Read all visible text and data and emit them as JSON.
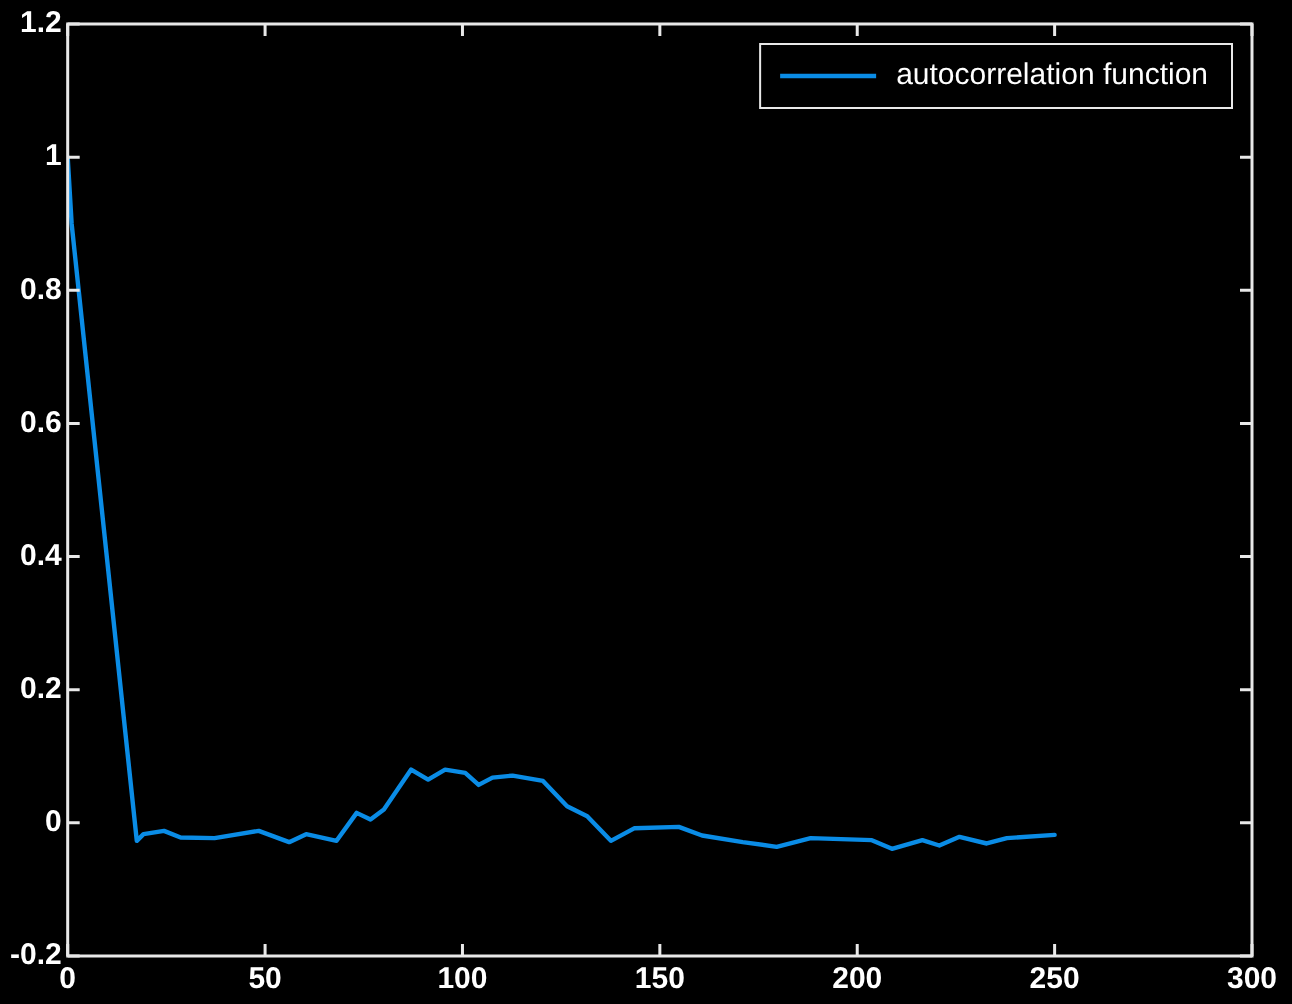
{
  "chart_data": {
    "type": "line",
    "x": [
      0,
      1,
      17.5,
      19.2,
      24.4,
      28.6,
      37.2,
      48.4,
      56.1,
      60.4,
      68.1,
      73.2,
      76.7,
      80.1,
      87,
      91.3,
      95.6,
      100.7,
      104.1,
      107.6,
      112.7,
      120.4,
      126.5,
      131.6,
      137.6,
      143.6,
      154.8,
      160.7,
      171,
      179.6,
      188.2,
      203.7,
      208.8,
      216.5,
      220.8,
      225.9,
      232.8,
      237.9,
      250
    ],
    "series": [
      {
        "name": "autocorrelation function",
        "color": "#0a8ce6",
        "values": [
          1,
          0.9,
          -0.027,
          -0.017,
          -0.012,
          -0.022,
          -0.023,
          -0.012,
          -0.029,
          -0.017,
          -0.027,
          0.015,
          0.005,
          0.02,
          0.08,
          0.065,
          0.08,
          0.075,
          0.057,
          0.068,
          0.071,
          0.063,
          0.025,
          0.01,
          -0.027,
          -0.008,
          -0.006,
          -0.019,
          -0.029,
          -0.036,
          -0.023,
          -0.026,
          -0.039,
          -0.026,
          -0.034,
          -0.021,
          -0.031,
          -0.023,
          -0.018
        ]
      }
    ],
    "xlim": [
      0,
      300
    ],
    "xticks": [
      0,
      50,
      100,
      150,
      200,
      250,
      300
    ],
    "ylim": [
      -0.2,
      1.2
    ],
    "yticks": [
      -0.2,
      0,
      0.2,
      0.4,
      0.6,
      0.8,
      1,
      1.2
    ],
    "grid": false,
    "legend": "top right",
    "marker": "none",
    "line_style": "solid"
  }
}
